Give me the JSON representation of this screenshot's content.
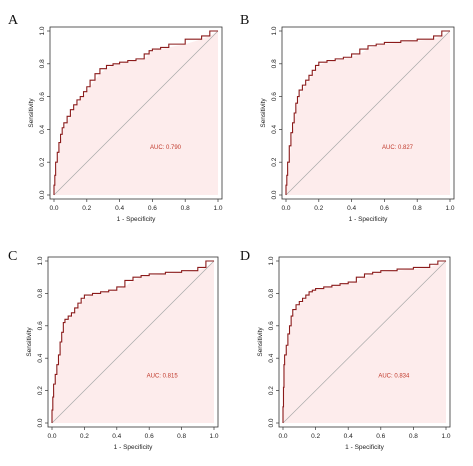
{
  "chart_data": [
    {
      "panel": "A",
      "type": "line",
      "xlabel": "1 - Specificity",
      "ylabel": "Sensitivity",
      "xlim": [
        0,
        1
      ],
      "ylim": [
        0,
        1
      ],
      "xticks": [
        "0.0",
        "0.2",
        "0.4",
        "0.6",
        "0.8",
        "1.0"
      ],
      "yticks": [
        "0.0",
        "0.2",
        "0.4",
        "0.6",
        "0.8",
        "1.0"
      ],
      "annotation": "AUC: 0.790",
      "auc_pos": [
        0.68,
        0.28
      ],
      "reference_line": [
        [
          0,
          0
        ],
        [
          1,
          1
        ]
      ],
      "x": [
        0,
        0.005,
        0.01,
        0.02,
        0.03,
        0.04,
        0.05,
        0.06,
        0.08,
        0.1,
        0.12,
        0.14,
        0.16,
        0.18,
        0.2,
        0.22,
        0.25,
        0.28,
        0.32,
        0.36,
        0.4,
        0.45,
        0.5,
        0.55,
        0.58,
        0.6,
        0.65,
        0.7,
        0.8,
        0.9,
        0.95,
        1.0
      ],
      "y": [
        0,
        0.06,
        0.12,
        0.2,
        0.26,
        0.32,
        0.37,
        0.41,
        0.44,
        0.48,
        0.52,
        0.55,
        0.58,
        0.6,
        0.63,
        0.66,
        0.7,
        0.74,
        0.77,
        0.79,
        0.8,
        0.81,
        0.82,
        0.83,
        0.86,
        0.88,
        0.89,
        0.9,
        0.92,
        0.95,
        0.97,
        1.0
      ]
    },
    {
      "panel": "B",
      "type": "line",
      "xlabel": "1 - Specificity",
      "ylabel": "Sensitivity",
      "xlim": [
        0,
        1
      ],
      "ylim": [
        0,
        1
      ],
      "xticks": [
        "0.0",
        "0.2",
        "0.4",
        "0.6",
        "0.8",
        "1.0"
      ],
      "yticks": [
        "0.0",
        "0.2",
        "0.4",
        "0.6",
        "0.8",
        "1.0"
      ],
      "annotation": "AUC: 0.827",
      "auc_pos": [
        0.68,
        0.28
      ],
      "reference_line": [
        [
          0,
          0
        ],
        [
          1,
          1
        ]
      ],
      "x": [
        0,
        0.005,
        0.01,
        0.02,
        0.03,
        0.04,
        0.05,
        0.06,
        0.07,
        0.08,
        0.1,
        0.12,
        0.14,
        0.16,
        0.18,
        0.2,
        0.25,
        0.3,
        0.35,
        0.4,
        0.45,
        0.5,
        0.55,
        0.6,
        0.7,
        0.8,
        0.9,
        0.95,
        1.0
      ],
      "y": [
        0,
        0.06,
        0.12,
        0.2,
        0.3,
        0.38,
        0.44,
        0.5,
        0.56,
        0.6,
        0.64,
        0.67,
        0.7,
        0.73,
        0.76,
        0.79,
        0.81,
        0.82,
        0.83,
        0.84,
        0.86,
        0.89,
        0.91,
        0.92,
        0.93,
        0.94,
        0.95,
        0.97,
        1.0
      ]
    },
    {
      "panel": "C",
      "type": "line",
      "xlabel": "1 - Specificity",
      "ylabel": "Sensitivity",
      "xlim": [
        0,
        1
      ],
      "ylim": [
        0,
        1
      ],
      "xticks": [
        "0.0",
        "0.2",
        "0.4",
        "0.6",
        "0.8",
        "1.0"
      ],
      "yticks": [
        "0.0",
        "0.2",
        "0.4",
        "0.6",
        "0.8",
        "1.0"
      ],
      "annotation": "AUC: 0.815",
      "auc_pos": [
        0.68,
        0.28
      ],
      "reference_line": [
        [
          0,
          0
        ],
        [
          1,
          1
        ]
      ],
      "x": [
        0,
        0.005,
        0.01,
        0.02,
        0.03,
        0.04,
        0.05,
        0.06,
        0.07,
        0.08,
        0.1,
        0.12,
        0.14,
        0.16,
        0.18,
        0.2,
        0.25,
        0.3,
        0.35,
        0.4,
        0.45,
        0.5,
        0.55,
        0.6,
        0.7,
        0.8,
        0.9,
        0.95,
        1.0
      ],
      "y": [
        0,
        0.08,
        0.16,
        0.24,
        0.3,
        0.36,
        0.42,
        0.5,
        0.56,
        0.62,
        0.64,
        0.66,
        0.68,
        0.71,
        0.74,
        0.77,
        0.79,
        0.8,
        0.81,
        0.82,
        0.84,
        0.88,
        0.9,
        0.91,
        0.92,
        0.93,
        0.94,
        0.96,
        1.0
      ]
    },
    {
      "panel": "D",
      "type": "line",
      "xlabel": "1 - Specificity",
      "ylabel": "Sensitivity",
      "xlim": [
        0,
        1
      ],
      "ylim": [
        0,
        1
      ],
      "xticks": [
        "0.0",
        "0.2",
        "0.4",
        "0.6",
        "0.8",
        "1.0"
      ],
      "yticks": [
        "0.0",
        "0.2",
        "0.4",
        "0.6",
        "0.8",
        "1.0"
      ],
      "annotation": "AUC: 0.834",
      "auc_pos": [
        0.68,
        0.28
      ],
      "reference_line": [
        [
          0,
          0
        ],
        [
          1,
          1
        ]
      ],
      "x": [
        0,
        0.003,
        0.006,
        0.01,
        0.02,
        0.03,
        0.04,
        0.05,
        0.06,
        0.08,
        0.1,
        0.12,
        0.14,
        0.16,
        0.18,
        0.2,
        0.25,
        0.3,
        0.35,
        0.4,
        0.45,
        0.5,
        0.55,
        0.6,
        0.7,
        0.8,
        0.9,
        0.95,
        1.0
      ],
      "y": [
        0,
        0.1,
        0.22,
        0.36,
        0.42,
        0.48,
        0.55,
        0.6,
        0.66,
        0.7,
        0.73,
        0.75,
        0.77,
        0.79,
        0.81,
        0.82,
        0.83,
        0.84,
        0.85,
        0.86,
        0.87,
        0.9,
        0.92,
        0.93,
        0.94,
        0.95,
        0.96,
        0.98,
        1.0
      ]
    }
  ],
  "colors": {
    "roc_line": "#8b1a1a",
    "fill": "#fdecec",
    "reference": "#aaaaaa",
    "axis": "#333333",
    "auc_text": "#c0392b"
  }
}
